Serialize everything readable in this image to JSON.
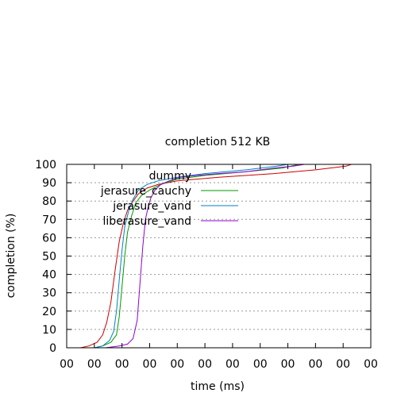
{
  "chart_data": {
    "type": "line",
    "title": "completion 512 KB",
    "xlabel": "time (ms)",
    "ylabel": "completion (%)",
    "ylim": [
      0,
      100
    ],
    "y_ticks": [
      0,
      10,
      20,
      30,
      40,
      50,
      60,
      70,
      80,
      90,
      100
    ],
    "y_tick_labels": [
      "0",
      "10",
      "20",
      "30",
      "40",
      "50",
      "60",
      "70",
      "80",
      "90",
      "100"
    ],
    "x_ticks": [
      0,
      1,
      2,
      3,
      4,
      5,
      6,
      7,
      8,
      9,
      10,
      11
    ],
    "x_tick_labels": [
      "00",
      "00",
      "00",
      "00",
      "00",
      "00",
      "00",
      "00",
      "00",
      "00",
      "00",
      "00"
    ],
    "xlim": [
      0,
      11
    ],
    "grid": "horizontal-dashed",
    "legend_position": "top-left",
    "legend_entries": [
      "dummy",
      "jerasure_cauchy",
      "jerasure_vand",
      "liberasure_vand"
    ],
    "series": [
      {
        "name": "dummy",
        "color": "#cc0000",
        "x": [
          0.5,
          0.8,
          1.1,
          1.3,
          1.45,
          1.6,
          1.75,
          1.9,
          2.05,
          2.2,
          2.4,
          2.6,
          2.9,
          3.3,
          4.0,
          5.5,
          7.5,
          9.0,
          10.1,
          10.3
        ],
        "y": [
          0,
          1,
          3,
          7,
          14,
          25,
          42,
          58,
          68,
          75,
          80,
          84,
          87,
          89,
          91,
          93,
          95,
          97,
          99,
          100
        ]
      },
      {
        "name": "jerasure_cauchy",
        "color": "#009900",
        "x": [
          1.0,
          1.3,
          1.6,
          1.8,
          1.9,
          2.0,
          2.1,
          2.2,
          2.35,
          2.5,
          2.7,
          3.0,
          3.4,
          4.0,
          5.0,
          6.5,
          7.8,
          8.4
        ],
        "y": [
          0,
          1,
          3,
          7,
          17,
          33,
          50,
          63,
          72,
          79,
          83,
          86,
          89,
          92,
          94,
          96,
          98,
          100
        ]
      },
      {
        "name": "jerasure_vand",
        "color": "#0080c0",
        "x": [
          1.0,
          1.3,
          1.55,
          1.7,
          1.8,
          1.9,
          2.0,
          2.1,
          2.25,
          2.4,
          2.6,
          2.9,
          3.3,
          4.0,
          5.0,
          6.5,
          7.6,
          8.0
        ],
        "y": [
          0,
          1,
          4,
          9,
          20,
          37,
          53,
          66,
          75,
          81,
          86,
          89,
          91,
          93,
          95,
          97,
          99,
          100
        ]
      },
      {
        "name": "liberasure_vand",
        "color": "#9400d3",
        "x": [
          1.4,
          1.9,
          2.2,
          2.4,
          2.55,
          2.65,
          2.75,
          2.85,
          2.95,
          3.05,
          3.2,
          3.4,
          3.7,
          4.1,
          4.7,
          5.5,
          6.5,
          7.5,
          8.2,
          8.6
        ],
        "y": [
          0,
          1,
          2,
          5,
          15,
          35,
          55,
          70,
          77,
          82,
          86,
          89,
          91,
          93,
          94,
          95,
          96,
          98,
          99,
          100
        ]
      }
    ]
  }
}
